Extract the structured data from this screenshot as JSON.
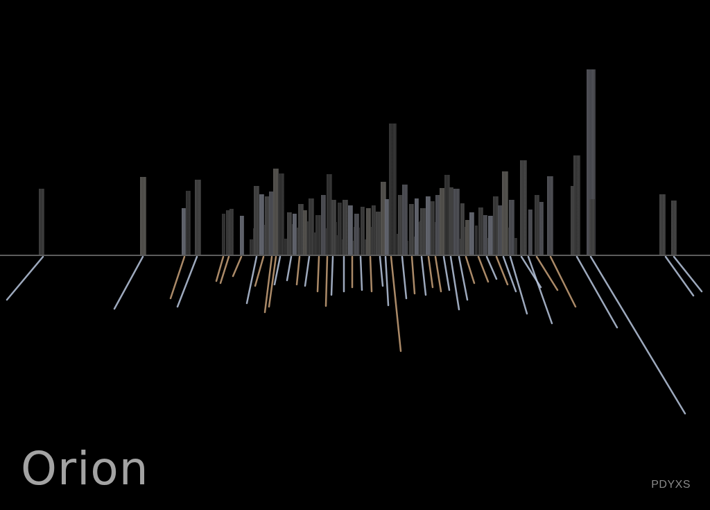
{
  "title": "Orion",
  "signature": "PDYXS",
  "colors": {
    "background": "#000000",
    "horizon": "#5c5c5c",
    "bar_shades": [
      "#2b2b2b",
      "#333333",
      "#3b3b3b",
      "#45464c",
      "#4c4a46",
      "#5a5d66"
    ],
    "ray_warm": "#c9a27a",
    "ray_cool": "#b9c7de",
    "text": "#a3a3a3"
  }
}
